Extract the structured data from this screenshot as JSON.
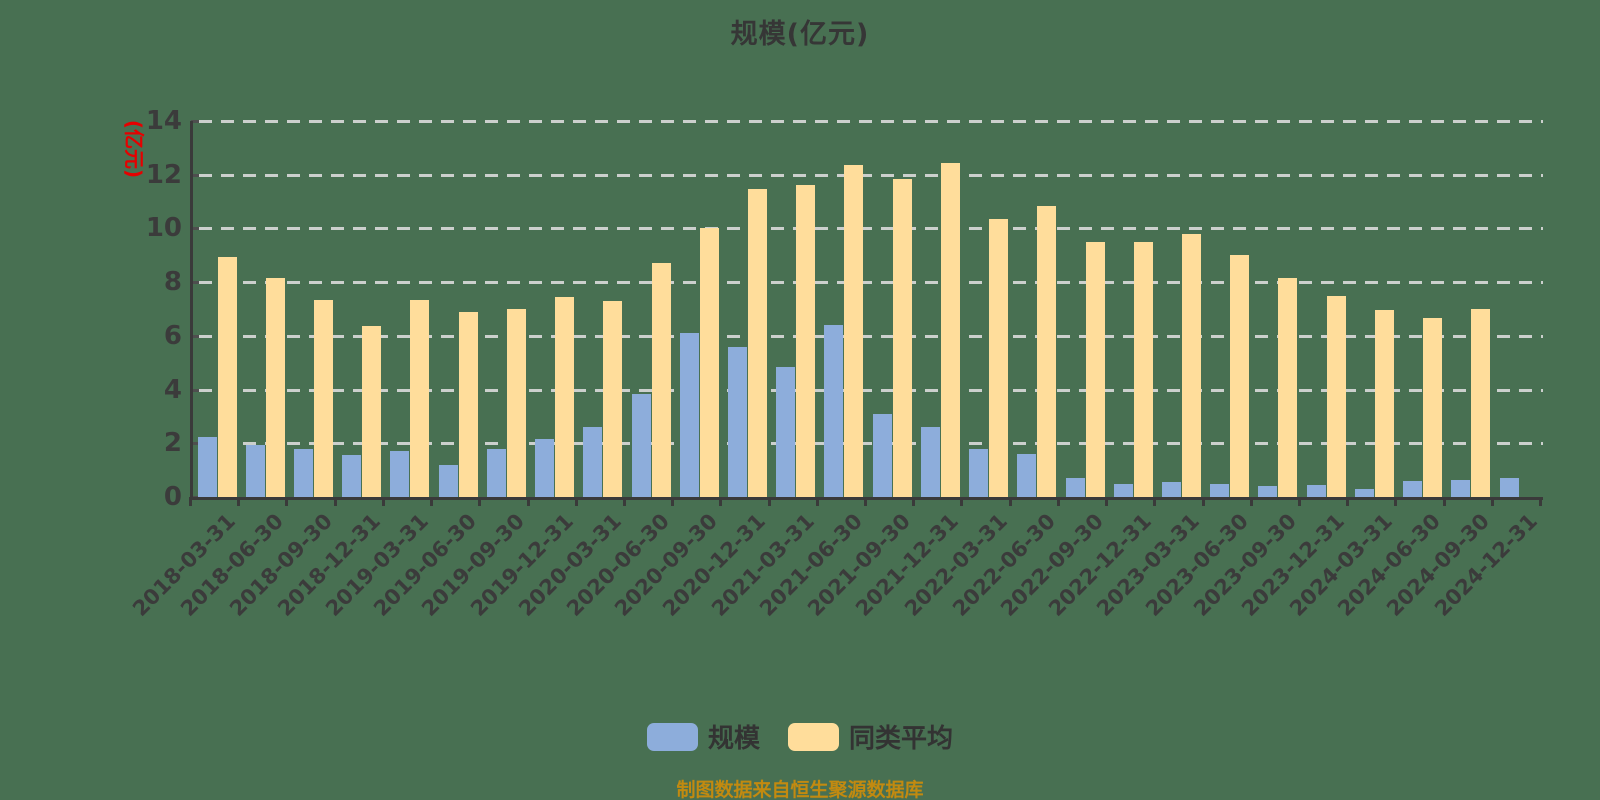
{
  "title": "规模(亿元)",
  "y_axis_unit": "(亿元)",
  "footer_note": "制图数据来自恒生聚源数据库",
  "colors": {
    "background": "#487052",
    "scale_bar": "#8DADDB",
    "average_bar": "#FFDD9B",
    "gridline": "#d8d8d8",
    "axis": "#3a3a3a",
    "tick_text": "#3b3b3b",
    "unit_text": "#e60000",
    "footer_text": "#C28A10"
  },
  "legend": {
    "items": [
      {
        "label": "规模",
        "color": "#8DADDB"
      },
      {
        "label": "同类平均",
        "color": "#FFDD9B"
      }
    ]
  },
  "chart_data": {
    "type": "bar",
    "title": "规模(亿元)",
    "y_unit": "(亿元)",
    "source_note": "制图数据来自恒生聚源数据库",
    "ylim": [
      0,
      14
    ],
    "y_ticks": [
      0,
      2,
      4,
      6,
      8,
      10,
      12,
      14
    ],
    "grid": "horizontal-dashed",
    "legend_position": "bottom",
    "categories": [
      "2018-03-31",
      "2018-06-30",
      "2018-09-30",
      "2018-12-31",
      "2019-03-31",
      "2019-06-30",
      "2019-09-30",
      "2019-12-31",
      "2020-03-31",
      "2020-06-30",
      "2020-09-30",
      "2020-12-31",
      "2021-03-31",
      "2021-06-30",
      "2021-09-30",
      "2021-12-31",
      "2022-03-31",
      "2022-06-30",
      "2022-09-30",
      "2022-12-31",
      "2023-03-31",
      "2023-06-30",
      "2023-09-30",
      "2023-12-31",
      "2024-03-31",
      "2024-06-30",
      "2024-09-30",
      "2024-12-31"
    ],
    "series": [
      {
        "name": "规模",
        "color": "#8DADDB",
        "values": [
          2.25,
          1.95,
          1.8,
          1.55,
          1.7,
          1.2,
          1.8,
          2.15,
          2.6,
          3.85,
          6.1,
          5.6,
          4.85,
          6.4,
          3.1,
          2.6,
          1.8,
          1.6,
          0.7,
          0.5,
          0.55,
          0.5,
          0.4,
          0.45,
          0.3,
          0.6,
          0.65,
          0.7
        ]
      },
      {
        "name": "同类平均",
        "color": "#FFDD9B",
        "values": [
          8.95,
          8.15,
          7.35,
          6.35,
          7.35,
          6.9,
          7.0,
          7.45,
          7.3,
          8.7,
          10.0,
          11.45,
          11.6,
          12.35,
          11.85,
          12.45,
          10.35,
          10.85,
          9.5,
          9.5,
          9.8,
          9.0,
          8.15,
          7.5,
          6.95,
          6.65,
          7.0,
          0
        ]
      }
    ]
  }
}
